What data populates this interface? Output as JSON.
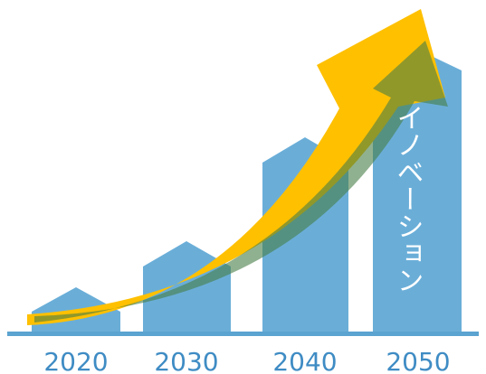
{
  "labels": [
    "2020",
    "2030",
    "2040",
    "2050"
  ],
  "caption": "イノベーション"
}
